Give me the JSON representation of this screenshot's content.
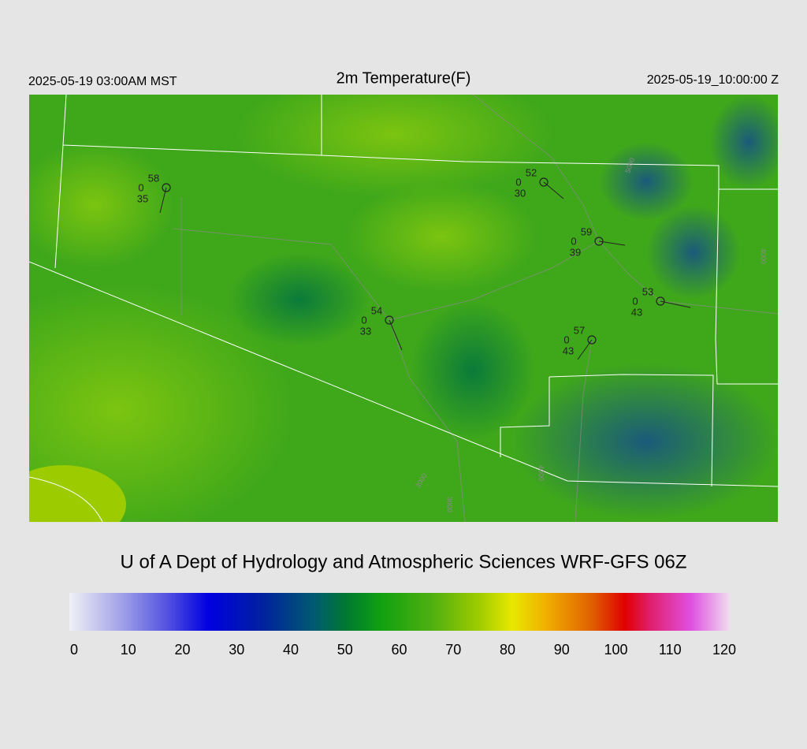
{
  "header": {
    "local_time": "2025-05-19 03:00AM MST",
    "title": "2m Temperature(F)",
    "valid_time": "2025-05-19_10:00:00 Z"
  },
  "stations": [
    {
      "temperature": 58,
      "code": 0,
      "dewpoint": 35
    },
    {
      "temperature": 52,
      "code": 0,
      "dewpoint": 30
    },
    {
      "temperature": 59,
      "code": 0,
      "dewpoint": 39
    },
    {
      "temperature": 53,
      "code": 0,
      "dewpoint": 43
    },
    {
      "temperature": 54,
      "code": 0,
      "dewpoint": 33
    },
    {
      "temperature": 57,
      "code": 0,
      "dewpoint": 43
    }
  ],
  "contour_labels": [
    "3000",
    "3000",
    "4000",
    "4000",
    "5000"
  ],
  "footer": "U of A Dept of Hydrology and Atmospheric Sciences WRF-GFS 06Z",
  "colorbar": {
    "ticks": [
      0,
      10,
      20,
      30,
      40,
      50,
      60,
      70,
      80,
      90,
      100,
      110,
      120
    ]
  }
}
